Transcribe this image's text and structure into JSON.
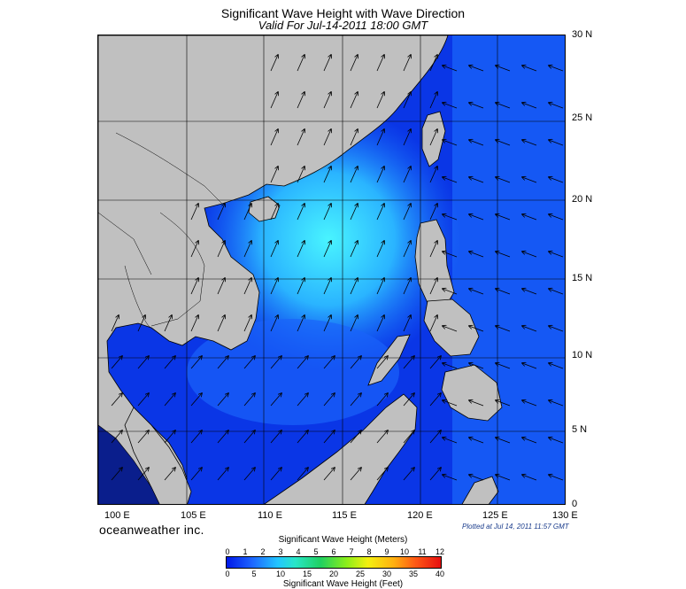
{
  "title": "Significant Wave Height with Wave Direction",
  "subtitle": "Valid For Jul-14-2011 18:00 GMT",
  "lat_labels": [
    "30 N",
    "25 N",
    "20 N",
    "15 N",
    "10 N",
    "5 N",
    "0"
  ],
  "lon_labels": [
    "100 E",
    "105 E",
    "110 E",
    "115 E",
    "120 E",
    "125 E",
    "130 E"
  ],
  "brand": "oceanweather inc.",
  "plotted": "Plotted at Jul 14, 2011 11:57 GMT",
  "legend": {
    "meters_title": "Significant Wave Height (Meters)",
    "feet_title": "Significant Wave Height (Feet)",
    "meters_ticks": [
      "0",
      "1",
      "2",
      "3",
      "4",
      "5",
      "6",
      "7",
      "8",
      "9",
      "10",
      "11",
      "12"
    ],
    "feet_ticks": [
      "0",
      "5",
      "10",
      "15",
      "20",
      "25",
      "30",
      "35",
      "40"
    ]
  },
  "colors": {
    "land": "#c0c0c0",
    "low": "#0a2ee0",
    "mid": "#1a74ff",
    "high": "#39e8ff"
  }
}
